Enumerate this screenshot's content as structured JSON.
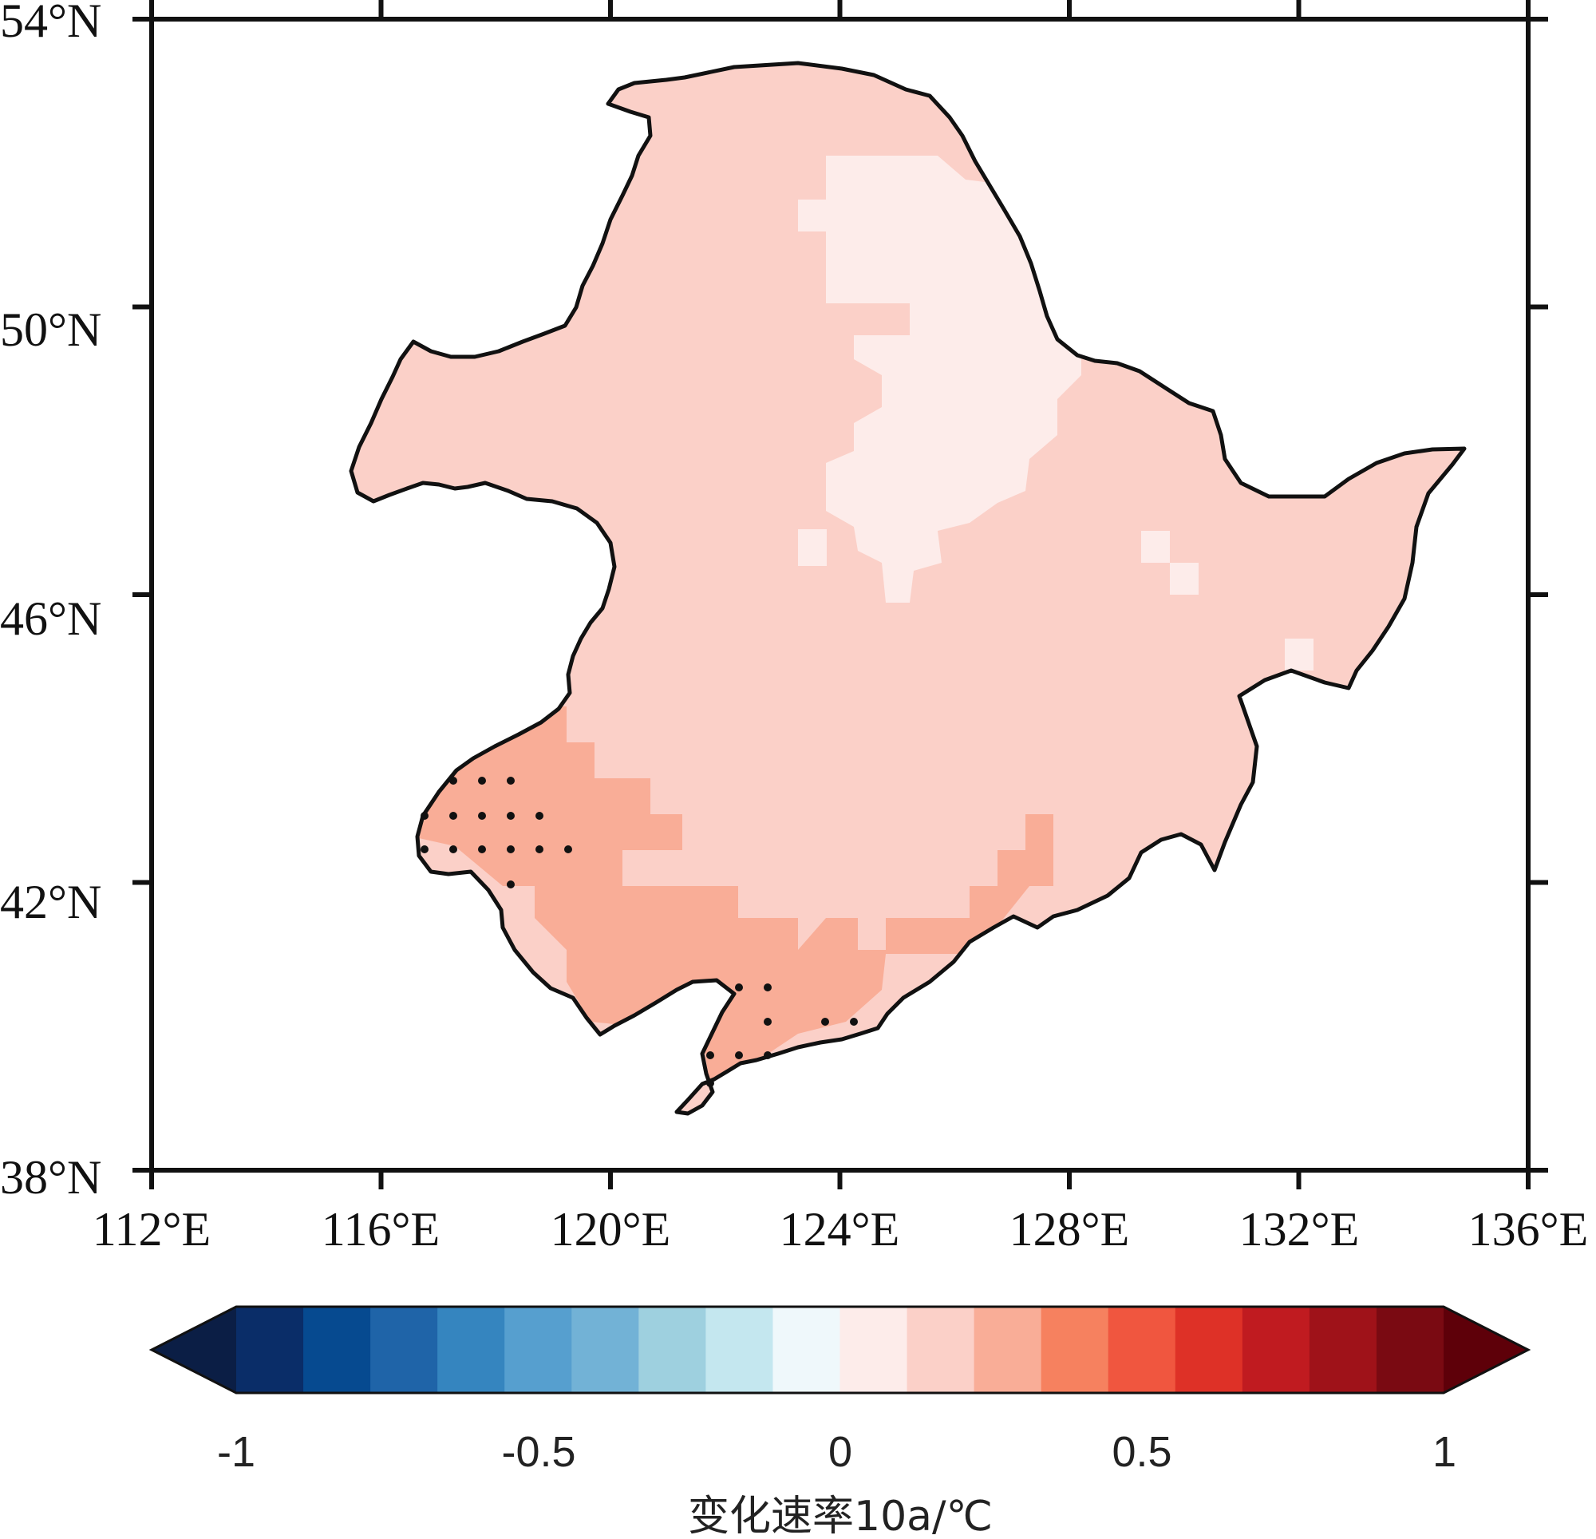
{
  "map": {
    "lat_ticks": [
      "54°N",
      "50°N",
      "46°N",
      "42°N",
      "38°N"
    ],
    "lon_ticks": [
      "112°E",
      "116°E",
      "120°E",
      "124°E",
      "128°E",
      "132°E",
      "136°E"
    ],
    "lat_range": [
      38,
      54
    ],
    "lon_range": [
      112,
      136
    ],
    "region": "Northeast China",
    "field_colors": {
      "base": "#fbd0c8",
      "light": "#fdecea",
      "warm": "#f9ad97",
      "boundary": "#111111",
      "dots": "#111111"
    }
  },
  "colorbar": {
    "colors": [
      "#0b1e45",
      "#0a2d68",
      "#064a90",
      "#1f64a8",
      "#3585bf",
      "#569fcf",
      "#72b2d6",
      "#9ed0df",
      "#c4e7ef",
      "#eff8fb",
      "#fdecea",
      "#fbd0c8",
      "#f9ad97",
      "#f6815f",
      "#f0563f",
      "#de3127",
      "#c01b20",
      "#9f1219",
      "#7a0a12",
      "#5e0009"
    ],
    "tick_labels": [
      "-1",
      "-0.5",
      "0",
      "0.5",
      "1"
    ],
    "tick_values": [
      -1,
      -0.5,
      0,
      0.5,
      1
    ],
    "range": [
      -1,
      1
    ],
    "title": "变化速率10a/℃"
  }
}
